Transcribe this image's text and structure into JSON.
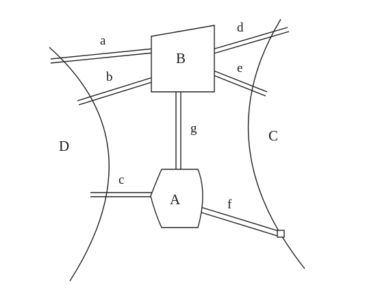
{
  "diagram": {
    "regions": {
      "left": "D",
      "right": "C"
    },
    "nodes": {
      "top": "B",
      "bottom": "A"
    },
    "edges": {
      "a": "a",
      "b": "b",
      "c": "c",
      "d": "d",
      "e": "e",
      "f": "f",
      "g": "g"
    }
  }
}
